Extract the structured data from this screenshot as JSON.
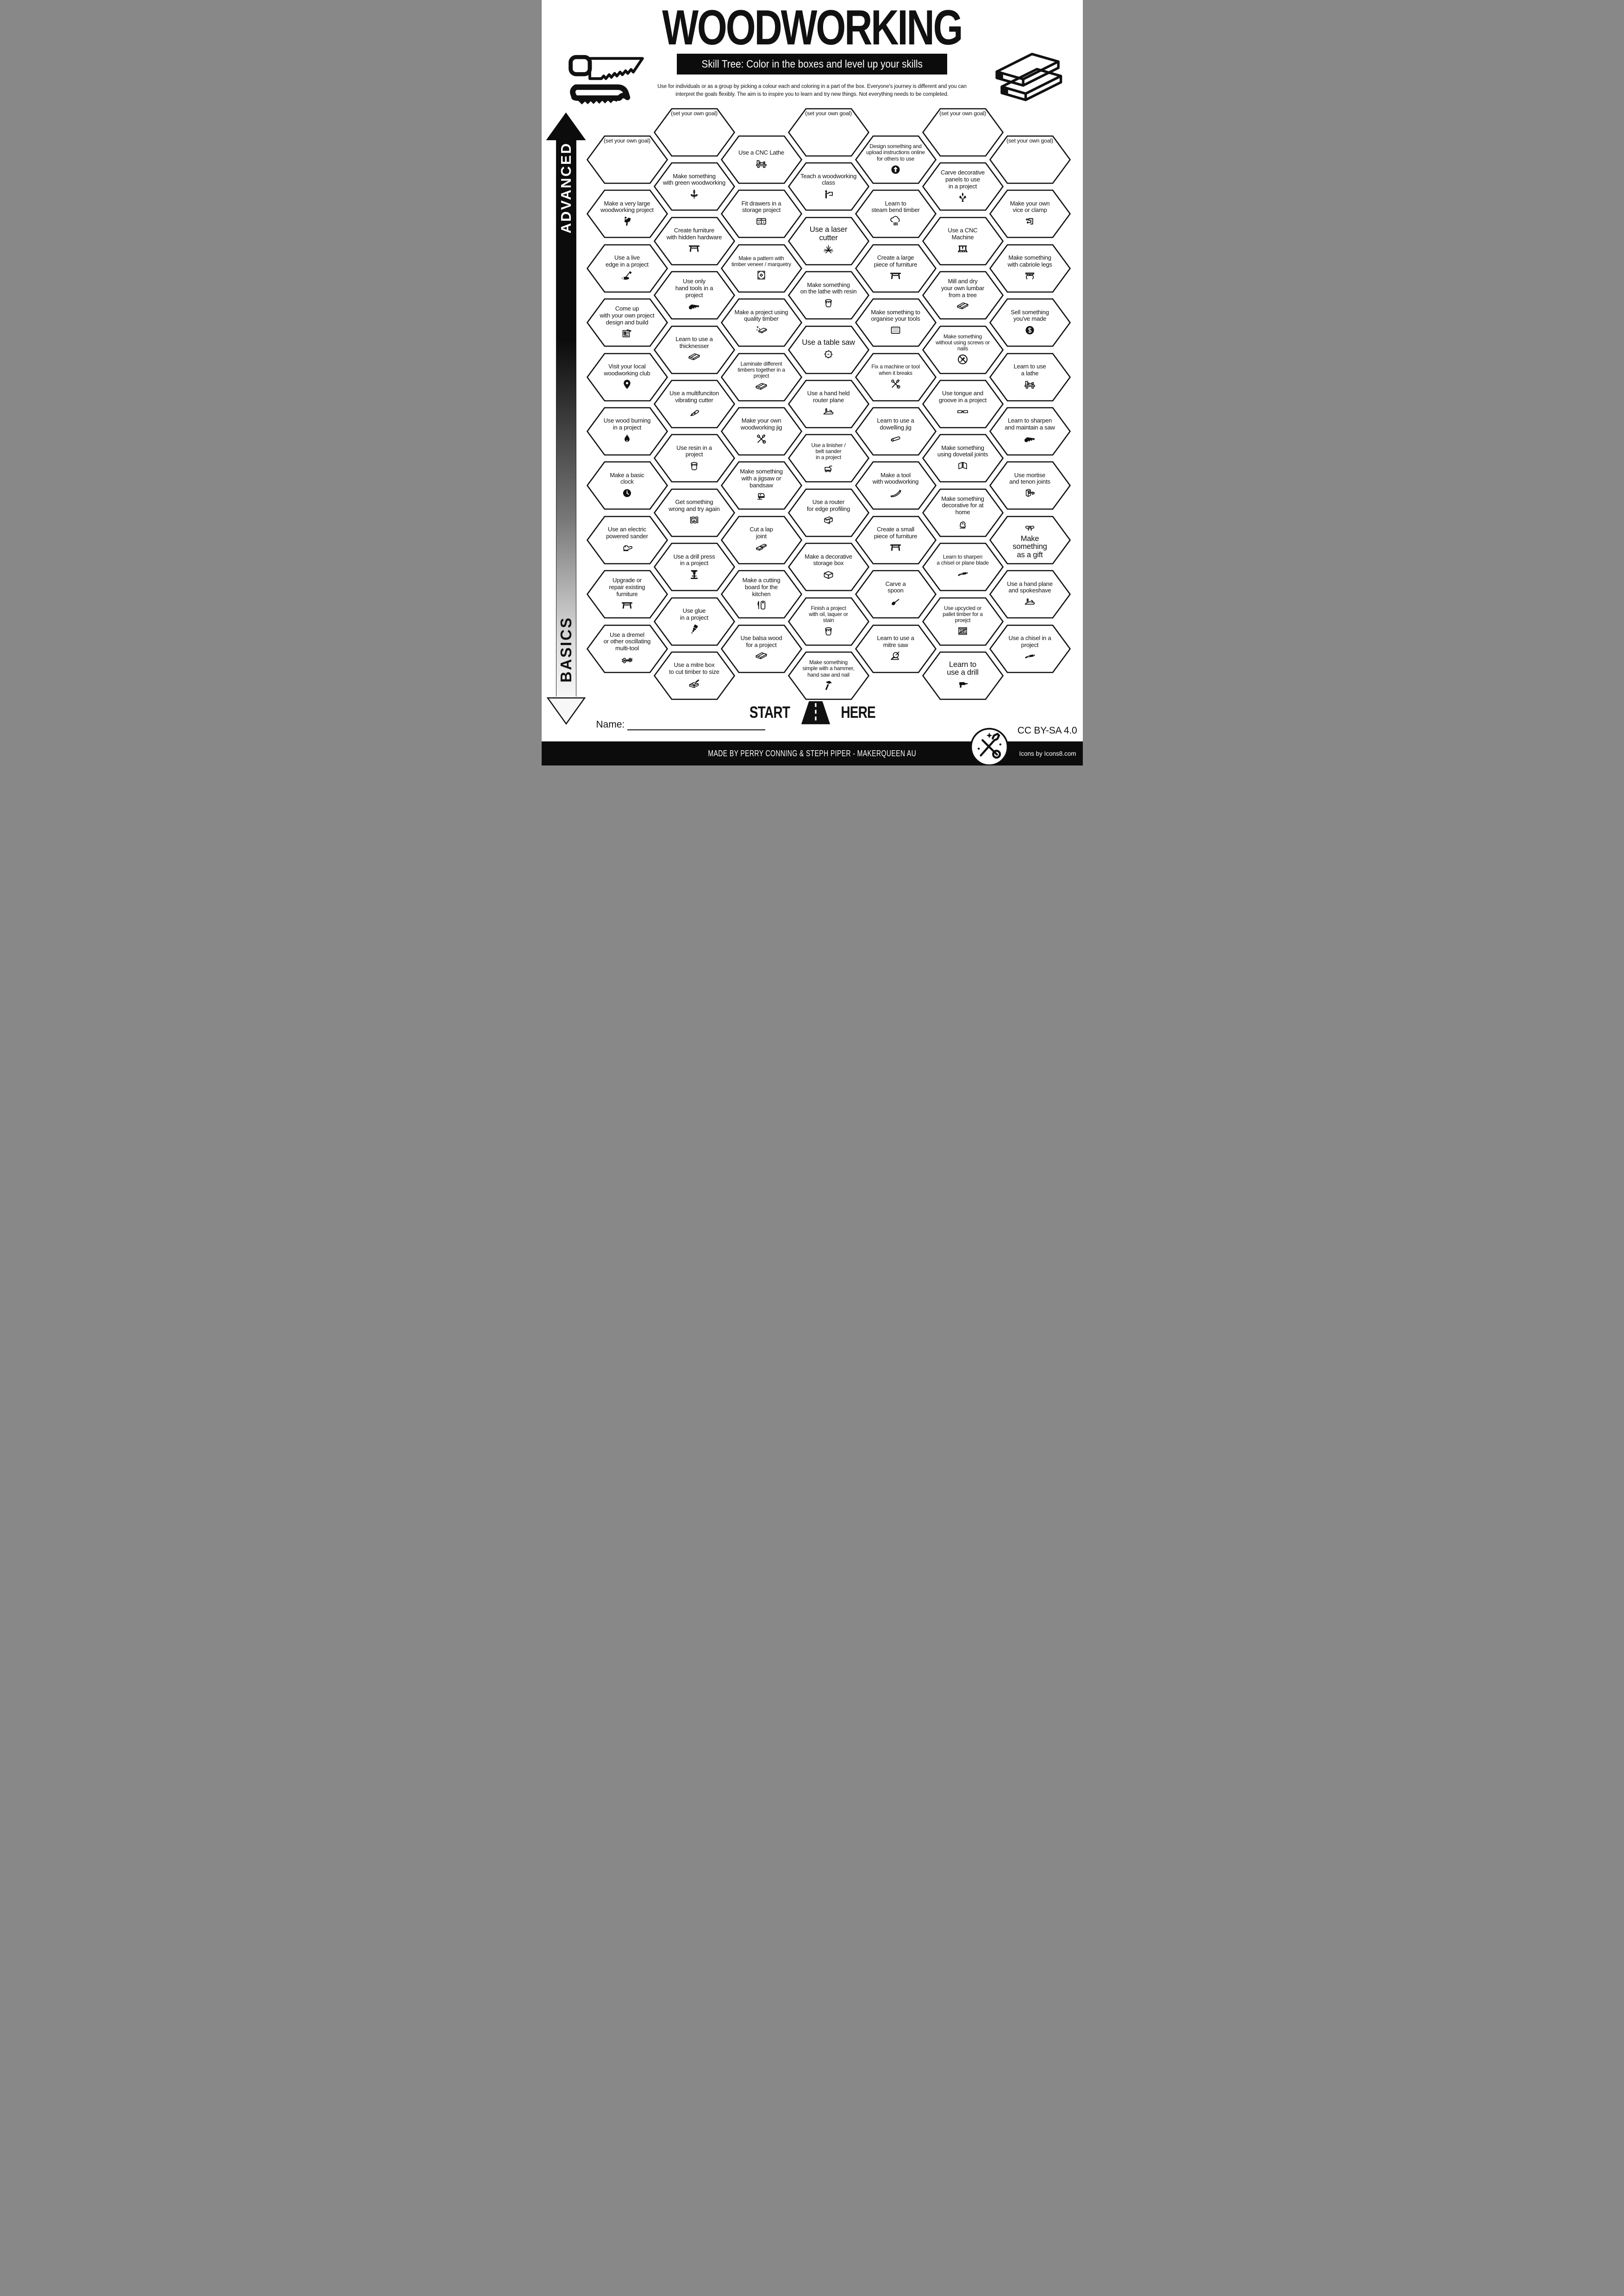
{
  "title": "WOODWORKING",
  "subtitle": "Skill Tree:  Color in the boxes and level up your skills",
  "description": "Use for individuals or as a group by picking a colour each and coloring in a part of the box.  Everyone's journey is different and you can\ninterpret the goals flexibly.  The aim is to inspire you to learn and try new things. Not everything needs to be completed.",
  "axis": {
    "advanced_label": "ADVANCED",
    "basics_label": "BASICS"
  },
  "start_here": {
    "start_label": "START",
    "here_label": "HERE"
  },
  "name_field": {
    "label": "Name:"
  },
  "footer": {
    "credit": "MADE BY PERRY CONNING & STEPH PIPER  -  MAKERQUEEN AU",
    "license": "CC BY-SA 4.0",
    "icons_credit": "Icons by Icons8.com"
  },
  "colors": {
    "ink": "#0c0c0c",
    "paper": "#ffffff"
  },
  "grid": {
    "columns": [
      {
        "cells": [
          {
            "t": "(set your own goal)",
            "goal": true
          },
          {
            "t": "Make a very large\nwoodworking project",
            "i": "carry"
          },
          {
            "t": "Use a live\nedge in a project",
            "i": "axe"
          },
          {
            "t": "Come up\nwith your own project\ndesign and build",
            "i": "blueprint"
          },
          {
            "t": "Visit your local\nwoodworking club",
            "i": "pin"
          },
          {
            "t": "Use wood burning\nin a project",
            "i": "flame"
          },
          {
            "t": "Make a basic\nclock",
            "i": "clock"
          },
          {
            "t": "Use an electric\npowered sander",
            "i": "sander"
          },
          {
            "t": "Upgrade or\nrepair existing\nfurniture",
            "i": "table"
          },
          {
            "t": "Use a dremel\nor other oscillating\nmulti-tool",
            "i": "rotary"
          }
        ]
      },
      {
        "cells": [
          {
            "t": "(set your own goal)",
            "goal": true
          },
          {
            "t": "Make something\nwith green woodworking",
            "i": "sprout"
          },
          {
            "t": "Create furniture\nwith hidden hardware",
            "i": "table"
          },
          {
            "t": "Use only\nhand tools in a\nproject",
            "i": "handsaw"
          },
          {
            "t": "Learn to use a\nthicknesser",
            "i": "planks"
          },
          {
            "t": "Use a multifunciton\nvibrating cutter",
            "i": "cutter"
          },
          {
            "t": "Use resin in a\nproject",
            "i": "bucket"
          },
          {
            "t": "Get something\nwrong and try again",
            "i": "sadframe"
          },
          {
            "t": "Use a drill press\nin a project",
            "i": "drillpress"
          },
          {
            "t": "Use glue\nin a project",
            "i": "glue"
          },
          {
            "t": "Use a mitre box\nto cut timber to size",
            "i": "mitrebox"
          }
        ]
      },
      {
        "cells": [
          {
            "t": "Use a CNC Lathe",
            "i": "lathe"
          },
          {
            "t": "Fit drawers in a\nstorage project",
            "i": "cabinet"
          },
          {
            "t": "Make a pattern with\ntimber veneer / marquetry",
            "i": "marquetry",
            "sz": "s"
          },
          {
            "t": "Make a project using\nquality timber",
            "i": "quality"
          },
          {
            "t": "Laminate different\ntimbers together in a\nproject",
            "i": "planks",
            "sz": "s"
          },
          {
            "t": "Make your own\nwoodworking jig",
            "i": "tools"
          },
          {
            "t": "Make something\nwith a jigsaw or\nbandsaw",
            "i": "jigsaw"
          },
          {
            "t": "Cut a lap\njoint",
            "i": "lapjoint"
          },
          {
            "t": "Make a cutting\nboard for the\nkitchen",
            "i": "cuttingboard"
          },
          {
            "t": "Use balsa wood\nfor a project",
            "i": "planks"
          }
        ]
      },
      {
        "cells": [
          {
            "t": "(set your own goal)",
            "goal": true
          },
          {
            "t": "Teach a woodworking\nclass",
            "i": "teacher"
          },
          {
            "t": "Use a laser\ncutter",
            "i": "laser",
            "sz": "b"
          },
          {
            "t": "Make something\non the lathe with resin",
            "i": "bucket"
          },
          {
            "t": "Use a table saw",
            "i": "sawblade",
            "sz": "b"
          },
          {
            "t": "Use a hand held\nrouter plane",
            "i": "handplane"
          },
          {
            "t": "Use a linisher /\nbelt sander\nin a project",
            "i": "beltsander",
            "sz": "s"
          },
          {
            "t": "Use a router\nfor edge profiling",
            "i": "edgeprofile"
          },
          {
            "t": "Make a decorative\nstorage box",
            "i": "box"
          },
          {
            "t": "Finish a project\nwith oil,  laquer or\nstain",
            "i": "bucket",
            "sz": "s"
          },
          {
            "t": "Make something\nsimple with a hammer,\nhand saw and nail",
            "i": "hammer",
            "sz": "s"
          }
        ]
      },
      {
        "cells": [
          {
            "t": "Design something and\nupload instructions online\nfor others to use",
            "i": "upload",
            "sz": "s"
          },
          {
            "t": "Learn to\nsteam bend timber",
            "i": "steam"
          },
          {
            "t": "Create a large\npiece of furniture",
            "i": "table"
          },
          {
            "t": "Make something to\norganise your tools",
            "i": "pegboard"
          },
          {
            "t": "Fix a machine or tool\nwhen it breaks",
            "i": "tools",
            "sz": "s"
          },
          {
            "t": "Learn to use a\ndowelling jig",
            "i": "dowel"
          },
          {
            "t": "Make a tool\nwith woodworking",
            "i": "woodtool"
          },
          {
            "t": "Create a small\npiece of furniture",
            "i": "table"
          },
          {
            "t": "Carve a\nspoon",
            "i": "spoon"
          },
          {
            "t": "Learn to use a\nmitre saw",
            "i": "mitresaw"
          }
        ]
      },
      {
        "cells": [
          {
            "t": "(set your own goal)",
            "goal": true
          },
          {
            "t": "Carve decorative\npanels to use\nin a project",
            "i": "fleur"
          },
          {
            "t": "Use a CNC\nMachine",
            "i": "cnc"
          },
          {
            "t": "Mill and dry\nyour own lumbar\nfrom a tree",
            "i": "planks"
          },
          {
            "t": "Make something\nwithout using screws or\nnails",
            "i": "nonails",
            "sz": "s"
          },
          {
            "t": "Use tongue and\ngroove in a project",
            "i": "tonguegroove"
          },
          {
            "t": "Make something\nusing dovetail joints",
            "i": "dovetail"
          },
          {
            "t": "Make something\ndecorative for at\nhome",
            "i": "figurine"
          },
          {
            "t": "Learn to sharpen\na chisel or plane blade",
            "i": "chisel",
            "sz": "s"
          },
          {
            "t": "Use upcycled or\npallet timber for a\nproejct",
            "i": "pallet",
            "sz": "s"
          },
          {
            "t": "Learn to\nuse a drill",
            "i": "drill",
            "sz": "b"
          }
        ]
      },
      {
        "cells": [
          {
            "t": "(set your own goal)",
            "goal": true
          },
          {
            "t": "Make your own\nvice or clamp",
            "i": "clamp"
          },
          {
            "t": "Make something\nwith cabriole legs",
            "i": "cabriole"
          },
          {
            "t": "Sell something\nyou've made",
            "i": "dollar"
          },
          {
            "t": "Learn to use\na lathe",
            "i": "lathe"
          },
          {
            "t": "Learn to sharpen\nand maintain a saw",
            "i": "handsaw"
          },
          {
            "t": "Use mortise\nand tenon joints",
            "i": "mortise"
          },
          {
            "t": "Make\nsomething\nas a gift",
            "i": "bow",
            "sz": "b",
            "iconTop": true
          },
          {
            "t": "Use a hand plane\nand spokeshave",
            "i": "handplane"
          },
          {
            "t": "Use a chisel in a\nproject",
            "i": "chisel"
          }
        ]
      }
    ]
  }
}
